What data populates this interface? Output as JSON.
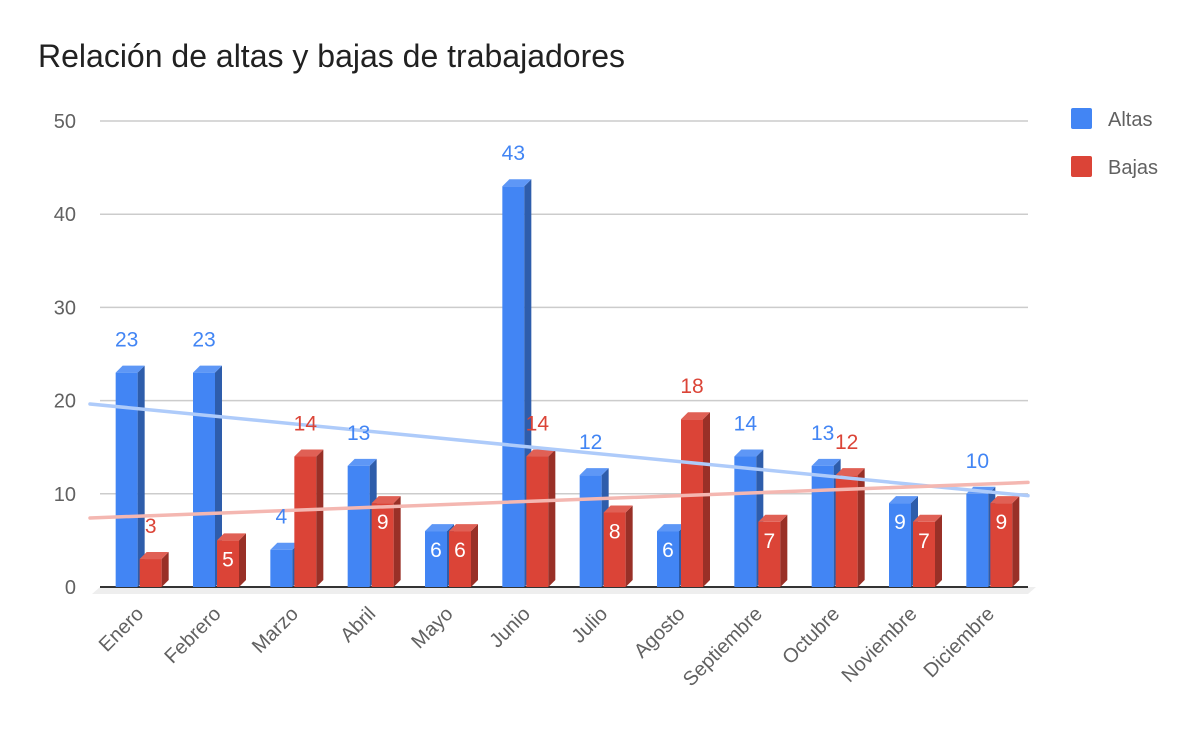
{
  "chart_data": {
    "type": "bar",
    "title": "Relación de altas y bajas de trabajadores",
    "xlabel": "",
    "ylabel": "",
    "ylim": [
      0,
      50
    ],
    "yticks": [
      0,
      10,
      20,
      30,
      40,
      50
    ],
    "grid": true,
    "legend_position": "right",
    "categories": [
      "Enero",
      "Febrero",
      "Marzo",
      "Abril",
      "Mayo",
      "Junio",
      "Julio",
      "Agosto",
      "Septiembre",
      "Octubre",
      "Noviembre",
      "Diciembre"
    ],
    "series": [
      {
        "name": "Altas",
        "color": "#4285f4",
        "values": [
          23,
          23,
          4,
          13,
          6,
          43,
          12,
          6,
          14,
          13,
          9,
          10
        ]
      },
      {
        "name": "Bajas",
        "color": "#db4437",
        "values": [
          3,
          5,
          14,
          9,
          6,
          14,
          8,
          18,
          7,
          12,
          7,
          9
        ]
      }
    ],
    "trendlines": [
      {
        "series": "Altas",
        "color": "#aecbfa",
        "type": "linear"
      },
      {
        "series": "Bajas",
        "color": "#f4b7b1",
        "type": "linear"
      }
    ]
  }
}
